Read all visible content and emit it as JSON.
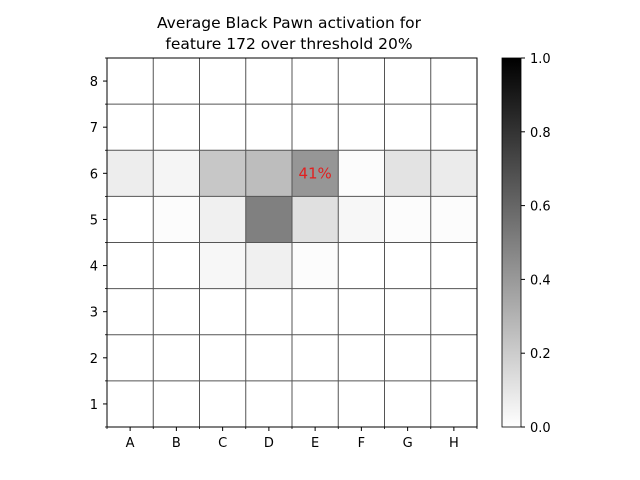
{
  "chart_data": {
    "type": "heatmap",
    "title_lines": [
      "Average Black Pawn activation for",
      "feature 172 over threshold 20%"
    ],
    "x_categories": [
      "A",
      "B",
      "C",
      "D",
      "E",
      "F",
      "G",
      "H"
    ],
    "y_categories": [
      "1",
      "2",
      "3",
      "4",
      "5",
      "6",
      "7",
      "8"
    ],
    "values_by_rank_top_to_bottom": {
      "rank_8": [
        0,
        0,
        0,
        0,
        0,
        0,
        0,
        0
      ],
      "rank_7": [
        0,
        0,
        0,
        0,
        0,
        0,
        0,
        0
      ],
      "rank_6": [
        0.07,
        0.04,
        0.22,
        0.26,
        0.41,
        0.01,
        0.11,
        0.08
      ],
      "rank_5": [
        0,
        0.01,
        0.06,
        0.5,
        0.12,
        0.03,
        0.01,
        0.01
      ],
      "rank_4": [
        0,
        0,
        0.03,
        0.06,
        0.01,
        0,
        0,
        0
      ],
      "rank_3": [
        0,
        0,
        0,
        0,
        0,
        0,
        0,
        0
      ],
      "rank_2": [
        0,
        0,
        0,
        0,
        0,
        0,
        0,
        0
      ],
      "rank_1": [
        0,
        0,
        0,
        0,
        0,
        0,
        0,
        0
      ]
    },
    "annotation": {
      "file": "E",
      "rank": "6",
      "text": "41%",
      "color": "#e02020"
    },
    "colorbar": {
      "range": [
        0.0,
        1.0
      ],
      "ticks": [
        "0.0",
        "0.2",
        "0.4",
        "0.6",
        "0.8",
        "1.0"
      ],
      "colormap": "Greys"
    },
    "grid_line_color": "#555555"
  }
}
